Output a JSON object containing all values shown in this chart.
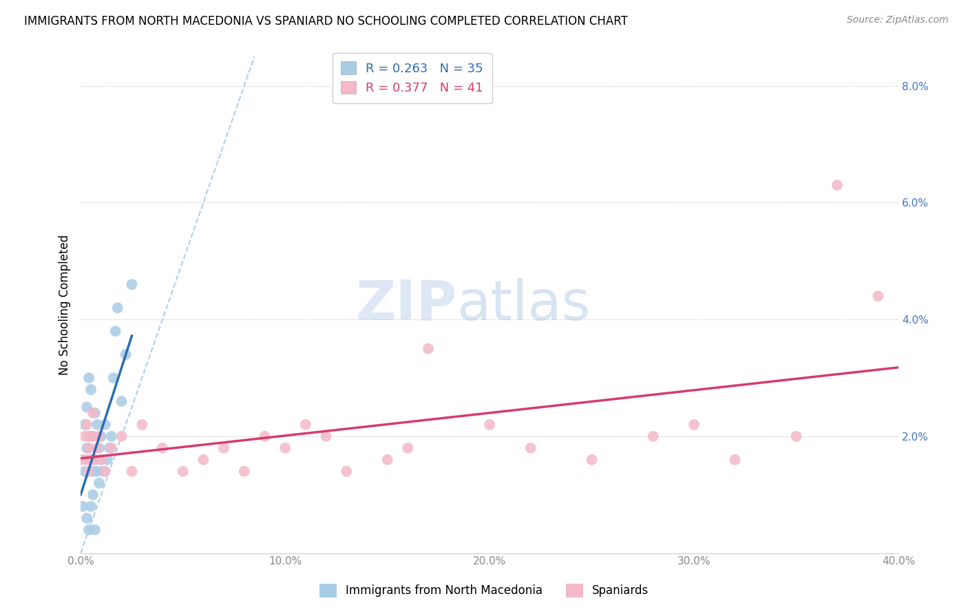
{
  "title": "IMMIGRANTS FROM NORTH MACEDONIA VS SPANIARD NO SCHOOLING COMPLETED CORRELATION CHART",
  "source": "Source: ZipAtlas.com",
  "ylabel": "No Schooling Completed",
  "watermark_zip": "ZIP",
  "watermark_atlas": "atlas",
  "legend_label1": "Immigrants from North Macedonia",
  "legend_label2": "Spaniards",
  "r1": 0.263,
  "n1": 35,
  "r2": 0.377,
  "n2": 41,
  "color1": "#a8cce4",
  "color2": "#f4b8c8",
  "line_color1": "#2b6cb0",
  "line_color2": "#d63b6e",
  "diag_color": "#a8c8e8",
  "xlim": [
    0.0,
    0.4
  ],
  "ylim": [
    0.0,
    0.085
  ],
  "xticks": [
    0.0,
    0.1,
    0.2,
    0.3,
    0.4
  ],
  "yticks": [
    0.02,
    0.04,
    0.06,
    0.08
  ],
  "xtick_labels": [
    "0.0%",
    "10.0%",
    "20.0%",
    "30.0%",
    "40.0%"
  ],
  "ytick_labels": [
    "2.0%",
    "4.0%",
    "6.0%",
    "8.0%"
  ],
  "blue_x": [
    0.001,
    0.002,
    0.002,
    0.003,
    0.003,
    0.004,
    0.004,
    0.005,
    0.005,
    0.006,
    0.006,
    0.007,
    0.007,
    0.008,
    0.008,
    0.009,
    0.009,
    0.01,
    0.01,
    0.011,
    0.012,
    0.013,
    0.014,
    0.015,
    0.016,
    0.017,
    0.018,
    0.02,
    0.022,
    0.025,
    0.003,
    0.004,
    0.005,
    0.006,
    0.007
  ],
  "blue_y": [
    0.008,
    0.022,
    0.014,
    0.025,
    0.018,
    0.03,
    0.02,
    0.028,
    0.016,
    0.02,
    0.014,
    0.024,
    0.016,
    0.022,
    0.014,
    0.018,
    0.012,
    0.02,
    0.016,
    0.014,
    0.022,
    0.016,
    0.018,
    0.02,
    0.03,
    0.038,
    0.042,
    0.026,
    0.034,
    0.046,
    0.006,
    0.004,
    0.008,
    0.01,
    0.004
  ],
  "pink_x": [
    0.001,
    0.002,
    0.003,
    0.003,
    0.004,
    0.004,
    0.005,
    0.005,
    0.006,
    0.006,
    0.007,
    0.008,
    0.009,
    0.01,
    0.012,
    0.015,
    0.02,
    0.025,
    0.03,
    0.04,
    0.05,
    0.06,
    0.07,
    0.08,
    0.09,
    0.1,
    0.11,
    0.12,
    0.13,
    0.15,
    0.16,
    0.17,
    0.2,
    0.22,
    0.25,
    0.28,
    0.3,
    0.32,
    0.35,
    0.37,
    0.39
  ],
  "pink_y": [
    0.016,
    0.02,
    0.016,
    0.022,
    0.014,
    0.018,
    0.02,
    0.016,
    0.02,
    0.024,
    0.016,
    0.018,
    0.02,
    0.016,
    0.014,
    0.018,
    0.02,
    0.014,
    0.022,
    0.018,
    0.014,
    0.016,
    0.018,
    0.014,
    0.02,
    0.018,
    0.022,
    0.02,
    0.014,
    0.016,
    0.018,
    0.035,
    0.022,
    0.018,
    0.016,
    0.02,
    0.022,
    0.016,
    0.02,
    0.063,
    0.044
  ]
}
